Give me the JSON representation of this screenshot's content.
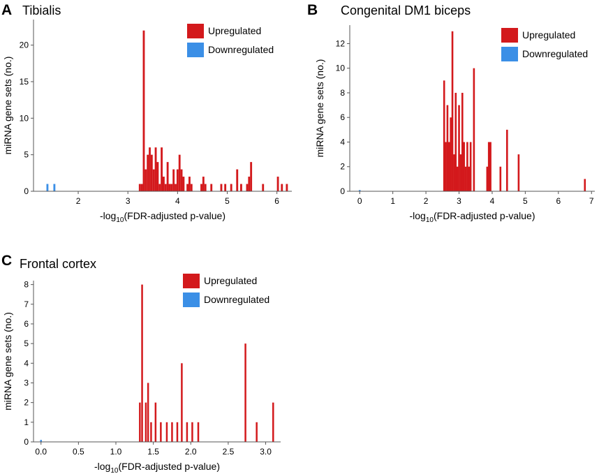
{
  "colors": {
    "up": "#d3191c",
    "down": "#3b8fe6"
  },
  "chart_data": [
    {
      "type": "bar",
      "panel": "A",
      "title": "Tibialis",
      "xlabel_main": "-log",
      "xlabel_sub": "10",
      "xlabel_rest": "(FDR-adjusted p-value)",
      "ylabel": "miRNA gene sets (no.)",
      "xlim": [
        1.1,
        6.3
      ],
      "ylim": [
        0,
        23.5
      ],
      "xticks": [
        2,
        3,
        4,
        5,
        6
      ],
      "yticks": [
        0,
        5,
        10,
        15,
        20
      ],
      "bar_width": 0.04,
      "legend": [
        "Upregulated",
        "Downregulated"
      ],
      "series": [
        {
          "name": "Upregulated",
          "bars": [
            [
              3.24,
              1
            ],
            [
              3.28,
              1
            ],
            [
              3.32,
              22
            ],
            [
              3.36,
              3
            ],
            [
              3.4,
              5
            ],
            [
              3.44,
              6
            ],
            [
              3.48,
              5
            ],
            [
              3.52,
              3
            ],
            [
              3.56,
              6
            ],
            [
              3.6,
              4
            ],
            [
              3.64,
              1
            ],
            [
              3.68,
              6
            ],
            [
              3.72,
              2
            ],
            [
              3.76,
              1
            ],
            [
              3.8,
              4
            ],
            [
              3.84,
              1
            ],
            [
              3.88,
              1
            ],
            [
              3.92,
              3
            ],
            [
              3.96,
              1
            ],
            [
              4.0,
              3
            ],
            [
              4.04,
              5
            ],
            [
              4.08,
              3
            ],
            [
              4.12,
              2
            ],
            [
              4.2,
              1
            ],
            [
              4.24,
              2
            ],
            [
              4.28,
              1
            ],
            [
              4.48,
              1
            ],
            [
              4.52,
              2
            ],
            [
              4.56,
              1
            ],
            [
              4.68,
              1
            ],
            [
              4.88,
              1
            ],
            [
              4.96,
              1
            ],
            [
              5.08,
              1
            ],
            [
              5.2,
              3
            ],
            [
              5.28,
              1
            ],
            [
              5.4,
              1
            ],
            [
              5.44,
              2
            ],
            [
              5.48,
              4
            ],
            [
              5.72,
              1
            ],
            [
              6.02,
              2
            ],
            [
              6.1,
              1
            ],
            [
              6.2,
              1
            ]
          ]
        },
        {
          "name": "Downregulated",
          "bars": [
            [
              1.38,
              1
            ],
            [
              1.52,
              1
            ]
          ]
        }
      ]
    },
    {
      "type": "bar",
      "panel": "B",
      "title": "Congenital DM1 biceps",
      "xlabel_main": "-log",
      "xlabel_sub": "10",
      "xlabel_rest": "(FDR-adjusted p-value)",
      "ylabel": "miRNA gene sets (no.)",
      "xlim": [
        -0.3,
        7.1
      ],
      "ylim": [
        0,
        13.5
      ],
      "xticks": [
        0,
        1,
        2,
        3,
        4,
        5,
        6,
        7
      ],
      "yticks": [
        0,
        2,
        4,
        6,
        8,
        10,
        12
      ],
      "bar_width": 0.055,
      "legend": [
        "Upregulated",
        "Downregulated"
      ],
      "series": [
        {
          "name": "Upregulated",
          "bars": [
            [
              2.55,
              9
            ],
            [
              2.6,
              4
            ],
            [
              2.65,
              7
            ],
            [
              2.7,
              4
            ],
            [
              2.75,
              6
            ],
            [
              2.8,
              13
            ],
            [
              2.85,
              3
            ],
            [
              2.9,
              8
            ],
            [
              2.95,
              2
            ],
            [
              3.0,
              7
            ],
            [
              3.05,
              3
            ],
            [
              3.1,
              8
            ],
            [
              3.15,
              4
            ],
            [
              3.2,
              2
            ],
            [
              3.25,
              4
            ],
            [
              3.3,
              2
            ],
            [
              3.35,
              4
            ],
            [
              3.45,
              10
            ],
            [
              3.85,
              2
            ],
            [
              3.9,
              4
            ],
            [
              3.95,
              4
            ],
            [
              4.25,
              2
            ],
            [
              4.45,
              5
            ],
            [
              4.8,
              3
            ],
            [
              6.8,
              1
            ]
          ]
        },
        {
          "name": "Downregulated",
          "bars": [
            [
              0.0,
              0.1
            ]
          ]
        }
      ]
    },
    {
      "type": "bar",
      "panel": "C",
      "title": "Frontal cortex",
      "xlabel_main": "-log",
      "xlabel_sub": "10",
      "xlabel_rest": "(FDR-adjusted p-value)",
      "ylabel": "miRNA gene sets (no.)",
      "xlim": [
        -0.1,
        3.2
      ],
      "ylim": [
        0,
        8.2
      ],
      "xticks": [
        "0.0",
        "0.5",
        "1.0",
        "1.5",
        "2.0",
        "2.5",
        "3.0"
      ],
      "yticks": [
        0,
        1,
        2,
        3,
        4,
        5,
        6,
        7,
        8
      ],
      "bar_width": 0.02,
      "legend": [
        "Upregulated",
        "Downregulated"
      ],
      "series": [
        {
          "name": "Upregulated",
          "bars": [
            [
              1.32,
              2
            ],
            [
              1.35,
              8
            ],
            [
              1.4,
              2
            ],
            [
              1.43,
              3
            ],
            [
              1.47,
              1
            ],
            [
              1.53,
              2
            ],
            [
              1.6,
              1
            ],
            [
              1.68,
              1
            ],
            [
              1.75,
              1
            ],
            [
              1.82,
              1
            ],
            [
              1.88,
              4
            ],
            [
              1.95,
              1
            ],
            [
              2.02,
              1
            ],
            [
              2.1,
              1
            ],
            [
              2.73,
              5
            ],
            [
              2.88,
              1
            ],
            [
              3.1,
              2
            ]
          ]
        },
        {
          "name": "Downregulated",
          "bars": [
            [
              0.0,
              0.1
            ]
          ]
        }
      ]
    }
  ]
}
